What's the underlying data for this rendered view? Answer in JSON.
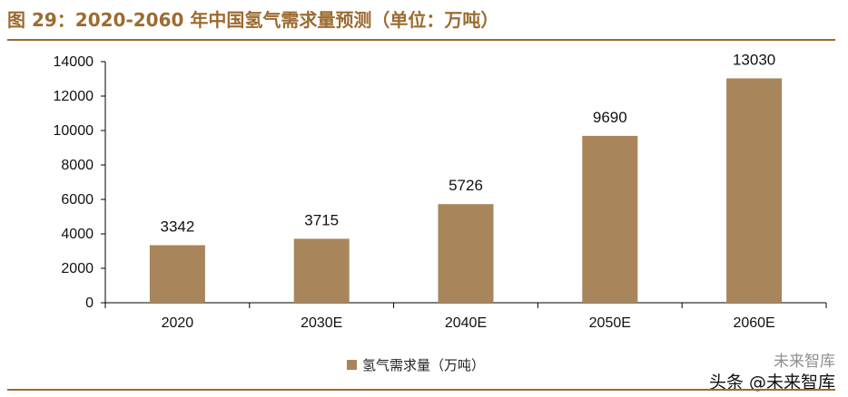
{
  "title": "图 29：2020-2060 年中国氢气需求量预测（单位：万吨）",
  "watermark": {
    "line1": "未来智库",
    "line2": "头条 @未来智库"
  },
  "colors": {
    "bar": "#a8855a",
    "accent": "#9c6b2f",
    "axis": "#000000"
  },
  "chart_data": {
    "type": "bar",
    "title": "图 29：2020-2060 年中国氢气需求量预测（单位：万吨）",
    "categories": [
      "2020",
      "2030E",
      "2040E",
      "2050E",
      "2060E"
    ],
    "series": [
      {
        "name": "氢气需求量（万吨）",
        "values": [
          3342,
          3715,
          5726,
          9690,
          13030
        ]
      }
    ],
    "data_labels": [
      "3342",
      "3715",
      "5726",
      "9690",
      "13030"
    ],
    "ylim": [
      0,
      14000
    ],
    "yticks": [
      "0",
      "2000",
      "4000",
      "6000",
      "8000",
      "10000",
      "12000",
      "14000"
    ],
    "xlabel": "",
    "ylabel": "",
    "grid": false,
    "legend_position": "bottom"
  }
}
